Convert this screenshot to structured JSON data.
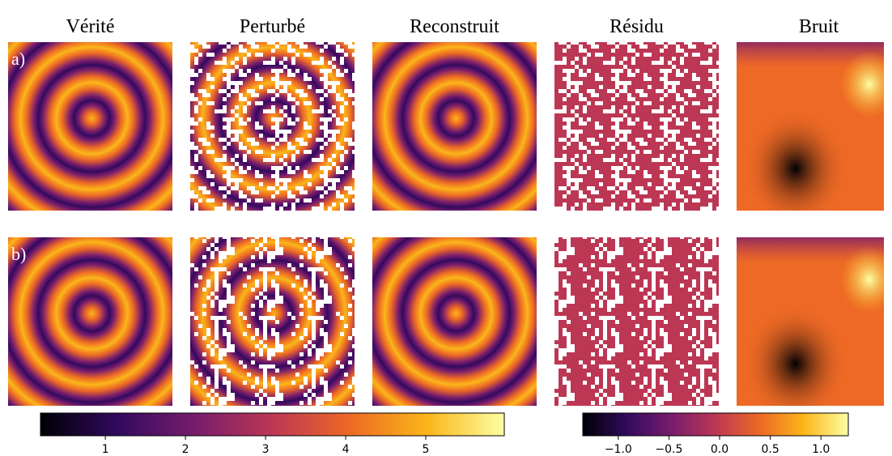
{
  "columns": [
    "Vérité",
    "Perturbé",
    "Reconstruit",
    "Résidu",
    "Bruit"
  ],
  "rows": [
    "a)",
    "b)"
  ],
  "colormap": [
    "#000004",
    "#320a5e",
    "#781c6d",
    "#bc3754",
    "#ed6925",
    "#fbb61a",
    "#fcffa4"
  ],
  "colorbars": [
    {
      "lim": [
        0.19,
        5.98
      ],
      "ticks": [
        1,
        2,
        3,
        4,
        5
      ]
    },
    {
      "lim": [
        -1.35,
        1.27
      ],
      "ticks": [
        {
          "value": -1.0,
          "label": "−1.0"
        },
        {
          "value": -0.5,
          "label": "−0.5"
        },
        {
          "value": 0.0,
          "label": "0.0"
        },
        0.5,
        {
          "value": 1.0,
          "label": "1.0"
        }
      ]
    }
  ]
}
